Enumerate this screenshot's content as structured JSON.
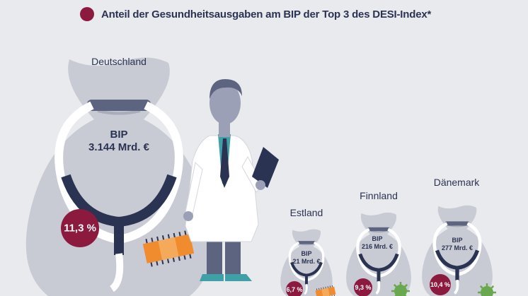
{
  "header": {
    "title": "Anteil der Gesundheitsausgaben am BIP der Top 3 des DESI-Index*",
    "legend_color": "#8b1a3e"
  },
  "colors": {
    "background": "#e9eaee",
    "bag": "#c9cbd4",
    "bag_dark": "#a8acbb",
    "navy": "#2b3352",
    "share": "#8b1a3e",
    "coat": "#ffffff",
    "shirt": "#3fa0a8",
    "plaster": "#f08c2e",
    "virus": "#6aa84f"
  },
  "chart_data": {
    "type": "pictogram",
    "title": "Anteil der Gesundheitsausgaben am BIP der Top 3 des DESI-Index*",
    "legend": [
      {
        "label": "Anteil der Gesundheitsausgaben am BIP der Top 3 des DESI-Index*",
        "color": "#8b1a3e"
      }
    ],
    "categories": [
      "Deutschland",
      "Estland",
      "Finnland",
      "Dänemark"
    ],
    "bip_line1": "BIP",
    "bip_values": [
      "3.144 Mrd. €",
      "21 Mrd. €",
      "216 Mrd. €",
      "277 Mrd. €"
    ],
    "bip_mrd_eur": [
      3144,
      21,
      216,
      277
    ],
    "health_share_labels": [
      "11,3 %",
      "6,7 %",
      "9,3 %",
      "10,4 %"
    ],
    "health_share_percent": [
      11.3,
      6.7,
      9.3,
      10.4
    ]
  },
  "countries": [
    {
      "name": "Deutschland",
      "bip_label": "BIP",
      "bip_value": "3.144 Mrd. €",
      "share": "11,3 %"
    },
    {
      "name": "Estland",
      "bip_label": "BIP",
      "bip_value": "21 Mrd. €",
      "share": "6,7 %"
    },
    {
      "name": "Finnland",
      "bip_label": "BIP",
      "bip_value": "216 Mrd. €",
      "share": "9,3 %"
    },
    {
      "name": "Dänemark",
      "bip_label": "BIP",
      "bip_value": "277 Mrd. €",
      "share": "10,4 %"
    }
  ]
}
